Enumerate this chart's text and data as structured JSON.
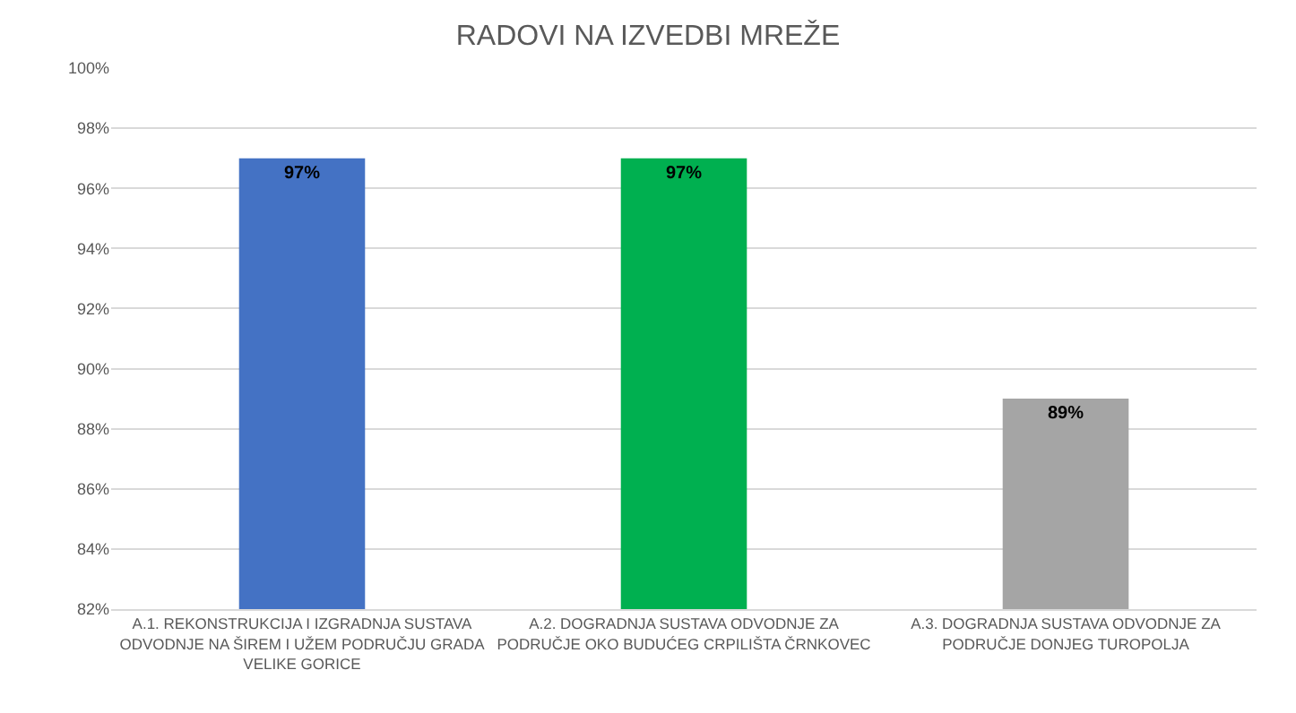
{
  "chart_data": {
    "type": "bar",
    "title": "RADOVI NA IZVEDBI MREŽE",
    "categories": [
      "A.1. REKONSTRUKCIJA I IZGRADNJA SUSTAVA ODVODNJE NA ŠIREM I UŽEM PODRUČJU GRADA VELIKE GORICE",
      "A.2. DOGRADNJA SUSTAVA ODVODNJE ZA PODRUČJE OKO BUDUĆEG CRPILIŠTA ČRNKOVEC",
      "A.3. DOGRADNJA SUSTAVA ODVODNJE ZA PODRUČJE DONJEG TUROPOLJA"
    ],
    "values": [
      97,
      97,
      89
    ],
    "colors": [
      "#4472c4",
      "#00b050",
      "#a5a5a5"
    ],
    "value_labels": [
      "97%",
      "97%",
      "89%"
    ],
    "ylim": [
      82,
      100
    ],
    "yticks": [
      {
        "value": 82,
        "label": "82%"
      },
      {
        "value": 84,
        "label": "84%"
      },
      {
        "value": 86,
        "label": "86%"
      },
      {
        "value": 88,
        "label": "88%"
      },
      {
        "value": 90,
        "label": "90%"
      },
      {
        "value": 92,
        "label": "92%"
      },
      {
        "value": 94,
        "label": "94%"
      },
      {
        "value": 96,
        "label": "96%"
      },
      {
        "value": 98,
        "label": "98%"
      },
      {
        "value": 100,
        "label": "100%"
      }
    ],
    "grid": true
  }
}
